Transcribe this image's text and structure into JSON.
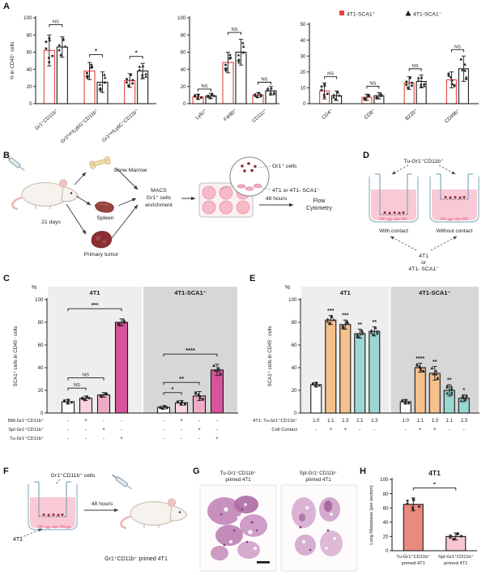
{
  "figure": {
    "panels": {
      "A": "A",
      "B": "B",
      "C": "C",
      "D": "D",
      "E": "E",
      "F": "F",
      "G": "G",
      "H": "H"
    }
  },
  "chart_data": [
    {
      "panel": "A",
      "type": "bar",
      "ylabel": "% in CD45⁺ cells",
      "ylim": [
        0,
        100
      ],
      "yticks": [
        0,
        20,
        40,
        60,
        80,
        100
      ],
      "rotate_labels": true,
      "groups": [
        {
          "label": "Gr1⁺CD11b⁺"
        },
        {
          "label": "Gr1ʰⁱᵍʰ/Ly6G⁺CD11b⁺"
        },
        {
          "label": "Gr1ˡᵒʷ/Ly6C⁺CD11b⁺"
        }
      ],
      "bars": [
        {
          "g": 0,
          "series": "4T1-SCA1⁺",
          "v": 62,
          "err": 18,
          "stroke": "#e8423d",
          "marker": "circle"
        },
        {
          "g": 0,
          "series": "4T1-SCA1⁻",
          "v": 66,
          "err": 12,
          "stroke": "#1a1a1a",
          "marker": "triangle"
        },
        {
          "g": 1,
          "series": "4T1-SCA1⁺",
          "v": 38,
          "err": 10,
          "stroke": "#e8423d",
          "marker": "circle"
        },
        {
          "g": 1,
          "series": "4T1-SCA1⁻",
          "v": 25,
          "err": 12,
          "stroke": "#1a1a1a",
          "marker": "triangle"
        },
        {
          "g": 2,
          "series": "4T1-SCA1⁺",
          "v": 27,
          "err": 8,
          "stroke": "#e8423d",
          "marker": "circle"
        },
        {
          "g": 2,
          "series": "4T1-SCA1⁻",
          "v": 38,
          "err": 9,
          "stroke": "#1a1a1a",
          "marker": "triangle"
        }
      ],
      "sig": [
        {
          "a": 0,
          "b": 1,
          "y": 92,
          "label": "NS"
        },
        {
          "a": 2,
          "b": 3,
          "y": 57,
          "label": "*"
        },
        {
          "a": 4,
          "b": 5,
          "y": 55,
          "label": "*"
        }
      ]
    },
    {
      "panel": "A",
      "type": "bar",
      "ylim": [
        0,
        100
      ],
      "yticks": [
        0,
        20,
        40,
        60,
        80,
        100
      ],
      "rotate_labels": true,
      "groups": [
        {
          "label": "Ly6c⁺"
        },
        {
          "label": "F4/80⁺"
        },
        {
          "label": "CD11c⁺"
        }
      ],
      "bars": [
        {
          "g": 0,
          "series": "4T1-SCA1⁺",
          "v": 8,
          "err": 3,
          "stroke": "#e8423d",
          "marker": "circle"
        },
        {
          "g": 0,
          "series": "4T1-SCA1⁻",
          "v": 9,
          "err": 3,
          "stroke": "#1a1a1a",
          "marker": "triangle"
        },
        {
          "g": 1,
          "series": "4T1-SCA1⁺",
          "v": 48,
          "err": 12,
          "stroke": "#e8423d",
          "marker": "circle"
        },
        {
          "g": 1,
          "series": "4T1-SCA1⁻",
          "v": 60,
          "err": 15,
          "stroke": "#1a1a1a",
          "marker": "triangle"
        },
        {
          "g": 2,
          "series": "4T1-SCA1⁺",
          "v": 10,
          "err": 3,
          "stroke": "#e8423d",
          "marker": "circle"
        },
        {
          "g": 2,
          "series": "4T1-SCA1⁻",
          "v": 15,
          "err": 5,
          "stroke": "#1a1a1a",
          "marker": "triangle"
        }
      ],
      "sig": [
        {
          "a": 0,
          "b": 1,
          "y": 17,
          "label": "NS"
        },
        {
          "a": 2,
          "b": 3,
          "y": 83,
          "label": "NS"
        },
        {
          "a": 4,
          "b": 5,
          "y": 25,
          "label": "NS"
        }
      ]
    },
    {
      "panel": "A",
      "type": "bar",
      "ylim": [
        0,
        50
      ],
      "yticks": [
        0,
        10,
        20,
        30,
        40,
        50
      ],
      "rotate_labels": true,
      "legend": [
        {
          "label": "4T1-SCA1⁺",
          "marker": "square",
          "color": "#e8423d"
        },
        {
          "label": "4T1-SCA1⁻",
          "marker": "triangle",
          "color": "#1a1a1a"
        }
      ],
      "groups": [
        {
          "label": "CD4⁺"
        },
        {
          "label": "CD8⁺"
        },
        {
          "label": "B220⁺"
        },
        {
          "label": "CD49b⁺"
        }
      ],
      "bars": [
        {
          "g": 0,
          "series": "4T1-SCA1⁺",
          "v": 8,
          "err": 5,
          "stroke": "#e8423d",
          "marker": "circle"
        },
        {
          "g": 0,
          "series": "4T1-SCA1⁻",
          "v": 5,
          "err": 3,
          "stroke": "#1a1a1a",
          "marker": "triangle"
        },
        {
          "g": 1,
          "series": "4T1-SCA1⁺",
          "v": 4,
          "err": 2,
          "stroke": "#e8423d",
          "marker": "circle"
        },
        {
          "g": 1,
          "series": "4T1-SCA1⁻",
          "v": 5,
          "err": 2,
          "stroke": "#1a1a1a",
          "marker": "triangle"
        },
        {
          "g": 2,
          "series": "4T1-SCA1⁺",
          "v": 13,
          "err": 4,
          "stroke": "#e8423d",
          "marker": "circle"
        },
        {
          "g": 2,
          "series": "4T1-SCA1⁻",
          "v": 14,
          "err": 4,
          "stroke": "#1a1a1a",
          "marker": "triangle"
        },
        {
          "g": 3,
          "series": "4T1-SCA1⁺",
          "v": 15,
          "err": 5,
          "stroke": "#e8423d",
          "marker": "circle"
        },
        {
          "g": 3,
          "series": "4T1-SCA1⁻",
          "v": 22,
          "err": 8,
          "stroke": "#1a1a1a",
          "marker": "triangle"
        }
      ],
      "sig": [
        {
          "a": 0,
          "b": 1,
          "y": 17,
          "label": "NS"
        },
        {
          "a": 2,
          "b": 3,
          "y": 11,
          "label": "NS"
        },
        {
          "a": 4,
          "b": 5,
          "y": 22,
          "label": "NS"
        },
        {
          "a": 6,
          "b": 7,
          "y": 34,
          "label": "NS"
        }
      ]
    },
    {
      "panel": "C",
      "type": "bar",
      "unit": "%",
      "ylabel": "SCA1⁺ cells in CD45⁻ cells",
      "ylim": [
        0,
        100
      ],
      "yticks": [
        0,
        20,
        40,
        60,
        80,
        100
      ],
      "groups": [
        {
          "label": "4T1",
          "shade": "#eeeeee"
        },
        {
          "label": "4T1-SCA1⁻",
          "shade": "#d7d7d7"
        }
      ],
      "bars": [
        {
          "g": 0,
          "v": 10,
          "err": 2,
          "fill": "#ffffff",
          "stroke": "#1a1a1a",
          "marker": "circle"
        },
        {
          "g": 0,
          "v": 13,
          "err": 2,
          "fill": "#f9d3de",
          "stroke": "#1a1a1a",
          "marker": "circle"
        },
        {
          "g": 0,
          "v": 16,
          "err": 2,
          "fill": "#efabc6",
          "stroke": "#1a1a1a",
          "marker": "circle"
        },
        {
          "g": 0,
          "v": 80,
          "err": 3,
          "fill": "#d6549b",
          "stroke": "#1a1a1a",
          "marker": "triangle"
        },
        {
          "g": 1,
          "v": 5,
          "err": 1.5,
          "fill": "#ffffff",
          "stroke": "#1a1a1a",
          "marker": "circle"
        },
        {
          "g": 1,
          "v": 9,
          "err": 2,
          "fill": "#f9d3de",
          "stroke": "#1a1a1a",
          "marker": "circle"
        },
        {
          "g": 1,
          "v": 15,
          "err": 4,
          "fill": "#efabc6",
          "stroke": "#1a1a1a",
          "marker": "circle"
        },
        {
          "g": 1,
          "v": 38,
          "err": 5,
          "fill": "#d6549b",
          "stroke": "#1a1a1a",
          "marker": "triangle"
        }
      ],
      "sig": [
        {
          "a": 0,
          "b": 1,
          "y": 22,
          "label": "NS"
        },
        {
          "a": 0,
          "b": 2,
          "y": 31,
          "label": "NS"
        },
        {
          "a": 0,
          "b": 3,
          "y": 92,
          "label": "***"
        },
        {
          "a": 4,
          "b": 5,
          "y": 18,
          "label": "*"
        },
        {
          "a": 4,
          "b": 6,
          "y": 27,
          "label": "**"
        },
        {
          "a": 4,
          "b": 7,
          "y": 52,
          "label": "****"
        }
      ],
      "xmatrix": [
        {
          "label": "BM-Gr1⁺CD11b⁺",
          "cells": [
            "-",
            "+",
            "-",
            "-",
            "-",
            "+",
            "-",
            "-"
          ]
        },
        {
          "label": "Spl-Gr1⁺CD11b⁺",
          "cells": [
            "-",
            "-",
            "+",
            "-",
            "-",
            "-",
            "+",
            "-"
          ]
        },
        {
          "label": "Tu-Gr1⁺CD11b⁺",
          "cells": [
            "-",
            "-",
            "-",
            "+",
            "-",
            "-",
            "-",
            "+"
          ]
        }
      ]
    },
    {
      "panel": "E",
      "type": "bar",
      "unit": "%",
      "ylabel": "SCA1⁺ cells in CD45⁻ cells",
      "ylim": [
        0,
        100
      ],
      "yticks": [
        0,
        20,
        40,
        60,
        80,
        100
      ],
      "groups": [
        {
          "label": "4T1",
          "shade": "#eeeeee"
        },
        {
          "label": "4T1-SCA1⁻",
          "shade": "#d7d7d7"
        }
      ],
      "bars": [
        {
          "g": 0,
          "v": 25,
          "err": 2,
          "fill": "#ffffff",
          "stroke": "#1a1a1a",
          "marker": "circle"
        },
        {
          "g": 0,
          "v": 82,
          "err": 4,
          "fill": "#f5c08b",
          "stroke": "#1a1a1a",
          "marker": "triangle",
          "stars": "***"
        },
        {
          "g": 0,
          "v": 78,
          "err": 4,
          "fill": "#f5c08b",
          "stroke": "#1a1a1a",
          "marker": "triangle",
          "stars": "***"
        },
        {
          "g": 0,
          "v": 70,
          "err": 4,
          "fill": "#9bd7d2",
          "stroke": "#1a1a1a",
          "marker": "triangle",
          "stars": "**"
        },
        {
          "g": 0,
          "v": 72,
          "err": 4,
          "fill": "#9bd7d2",
          "stroke": "#1a1a1a",
          "marker": "triangle",
          "stars": "**"
        },
        {
          "g": 1,
          "v": 10,
          "err": 2,
          "fill": "#ffffff",
          "stroke": "#1a1a1a",
          "marker": "circle"
        },
        {
          "g": 1,
          "v": 40,
          "err": 4,
          "fill": "#f5c08b",
          "stroke": "#1a1a1a",
          "marker": "triangle",
          "stars": "****"
        },
        {
          "g": 1,
          "v": 35,
          "err": 6,
          "fill": "#f5c08b",
          "stroke": "#1a1a1a",
          "marker": "triangle",
          "stars": "**"
        },
        {
          "g": 1,
          "v": 20,
          "err": 5,
          "fill": "#9bd7d2",
          "stroke": "#1a1a1a",
          "marker": "triangle",
          "stars": "**"
        },
        {
          "g": 1,
          "v": 13,
          "err": 3,
          "fill": "#9bd7d2",
          "stroke": "#1a1a1a",
          "marker": "triangle",
          "stars": "*"
        }
      ],
      "xmatrix": [
        {
          "label": "4T1: Tu-Gr1⁺CD11b⁺",
          "cells": [
            "1:0",
            "1:1",
            "1:3",
            "1:1",
            "1:3",
            "1:0",
            "1:1",
            "1:3",
            "1:1",
            "1:3"
          ]
        },
        {
          "label": "Cell Contact",
          "cells": [
            "-",
            "+",
            "+",
            "-",
            "-",
            "-",
            "+",
            "+",
            "-",
            "-"
          ]
        }
      ]
    },
    {
      "panel": "H",
      "type": "bar",
      "title": "4T1",
      "ylabel": "Lung Metastasis (per section)",
      "ylim": [
        0,
        100
      ],
      "yticks": [
        0,
        20,
        40,
        60,
        80,
        100
      ],
      "groups": [
        {
          "label": [
            "Tu-Gr1⁺CD11b⁺",
            "primed 4T1"
          ]
        },
        {
          "label": [
            "Spl-Gr1⁺CD11b⁺",
            "primed 4T1"
          ]
        }
      ],
      "bars": [
        {
          "g": 0,
          "v": 65,
          "err": 9,
          "fill": "#ea8a7f",
          "stroke": "#1a1a1a",
          "marker": "circle"
        },
        {
          "g": 1,
          "v": 20,
          "err": 5,
          "fill": "#f8c7d3",
          "stroke": "#1a1a1a",
          "marker": "square"
        }
      ],
      "sig": [
        {
          "a": 0,
          "b": 1,
          "y": 88,
          "label": "*"
        }
      ]
    }
  ],
  "diagram_b": {
    "days": "21 days",
    "bone_marrow": "Bone Marrow",
    "spleen": "Spleen",
    "primary_tumor": "Primary tumor",
    "macs_line1": "MACS",
    "macs_line2": "Gr1⁺ cells",
    "macs_line3": "enrichment",
    "inset_cells": "Gr1⁺ cells",
    "inset_targets": "4T1 or 4T1- SCA1⁻",
    "hours": "48 hours",
    "flow_line1": "Flow",
    "flow_line2": "Cytometry"
  },
  "diagram_d": {
    "top_label": "Tu-Gr1⁺CD11b⁺",
    "with_contact": "With contact",
    "without_contact": "Without contact",
    "bottom_line1": "4T1",
    "bottom_line2": "or",
    "bottom_line3": "4T1- SCA1⁻"
  },
  "diagram_f": {
    "cells_label": "Gr1⁺CD11b⁺ cells",
    "tumor_label": "4T1",
    "hours": "48 hours",
    "primed_label": "Gr1⁺CD11b⁺ primed 4T1"
  },
  "panel_g": {
    "image1_title_line1": "Tu-Gr1⁺CD11b⁺",
    "image1_title_line2": "primed 4T1",
    "image2_title_line1": "Spl-Gr1⁺CD11b⁺",
    "image2_title_line2": "primed 4T1"
  }
}
